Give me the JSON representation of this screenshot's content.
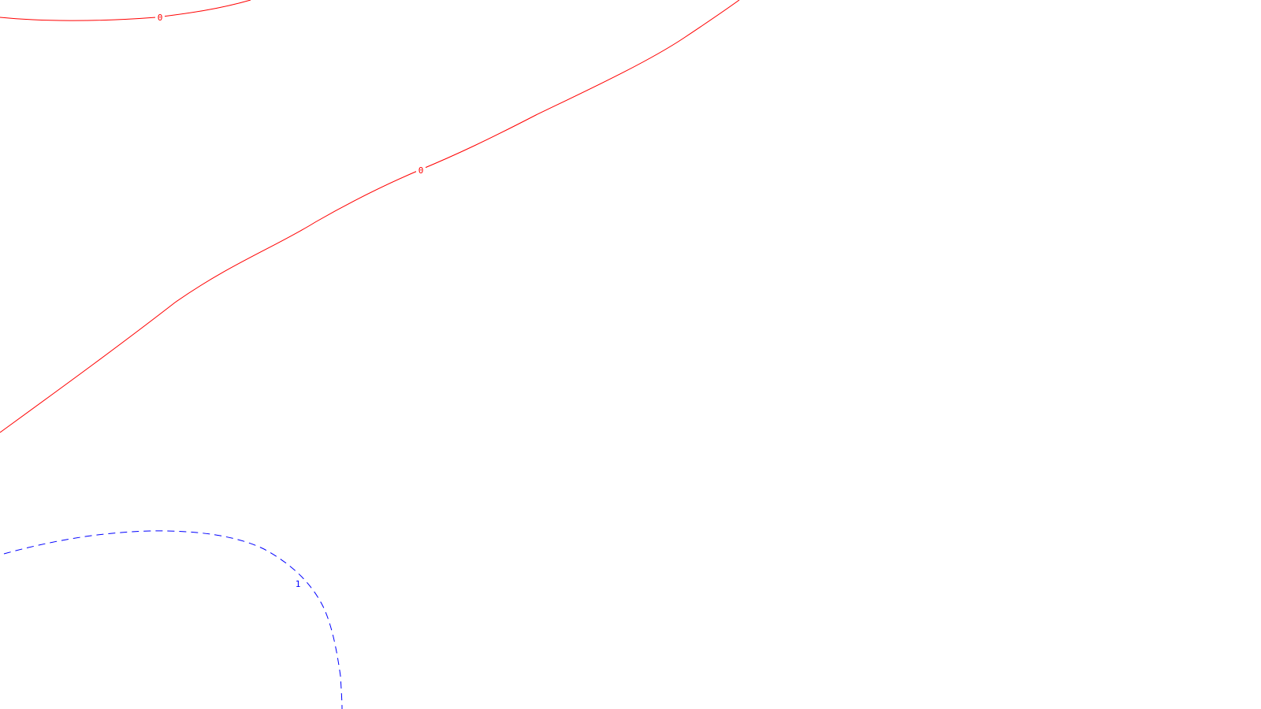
{
  "map": {
    "background": "#ffffff",
    "contours": [
      {
        "id": "zero-upper-left",
        "level_label": "0",
        "color": "#ff0000",
        "style": "solid"
      },
      {
        "id": "zero-diagonal",
        "level_label": "0",
        "color": "#ff0000",
        "style": "solid"
      },
      {
        "id": "one-lower-left",
        "level_label": "1",
        "color": "#0000ff",
        "style": "dashed"
      }
    ]
  }
}
